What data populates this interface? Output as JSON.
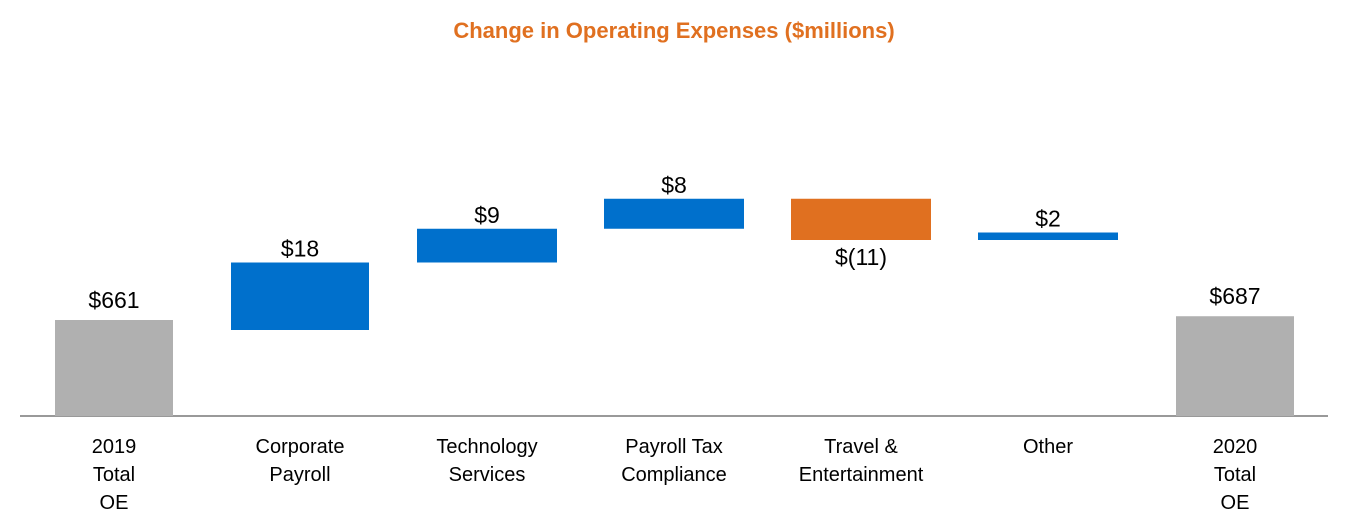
{
  "chart_data": {
    "type": "waterfall",
    "title": "Change in Operating Expenses ($millions)",
    "unit": "$millions",
    "bars": [
      {
        "id": "2019",
        "category": [
          "2019",
          "Total",
          "OE"
        ],
        "kind": "total",
        "value": 661,
        "label": "$661",
        "color": "#b0b0b0"
      },
      {
        "id": "corp-payroll",
        "category": [
          "Corporate",
          "Payroll"
        ],
        "kind": "delta",
        "value": 18,
        "label": "$18",
        "color": "#0070cc"
      },
      {
        "id": "tech-services",
        "category": [
          "Technology",
          "Services"
        ],
        "kind": "delta",
        "value": 9,
        "label": "$9",
        "color": "#0070cc"
      },
      {
        "id": "payroll-tax",
        "category": [
          "Payroll Tax",
          "Compliance"
        ],
        "kind": "delta",
        "value": 8,
        "label": "$8",
        "color": "#0070cc"
      },
      {
        "id": "travel",
        "category": [
          "Travel &",
          "Entertainment"
        ],
        "kind": "delta",
        "value": -11,
        "label": "$(11)",
        "color": "#e07020"
      },
      {
        "id": "other",
        "category": [
          "Other"
        ],
        "kind": "delta",
        "value": 2,
        "label": "$2",
        "color": "#0070cc"
      },
      {
        "id": "2020",
        "category": [
          "2020",
          "Total",
          "OE"
        ],
        "kind": "total",
        "value": 687,
        "label": "$687",
        "color": "#b0b0b0"
      }
    ]
  },
  "colors": {
    "title": "#e07020",
    "axis": "#999999"
  }
}
